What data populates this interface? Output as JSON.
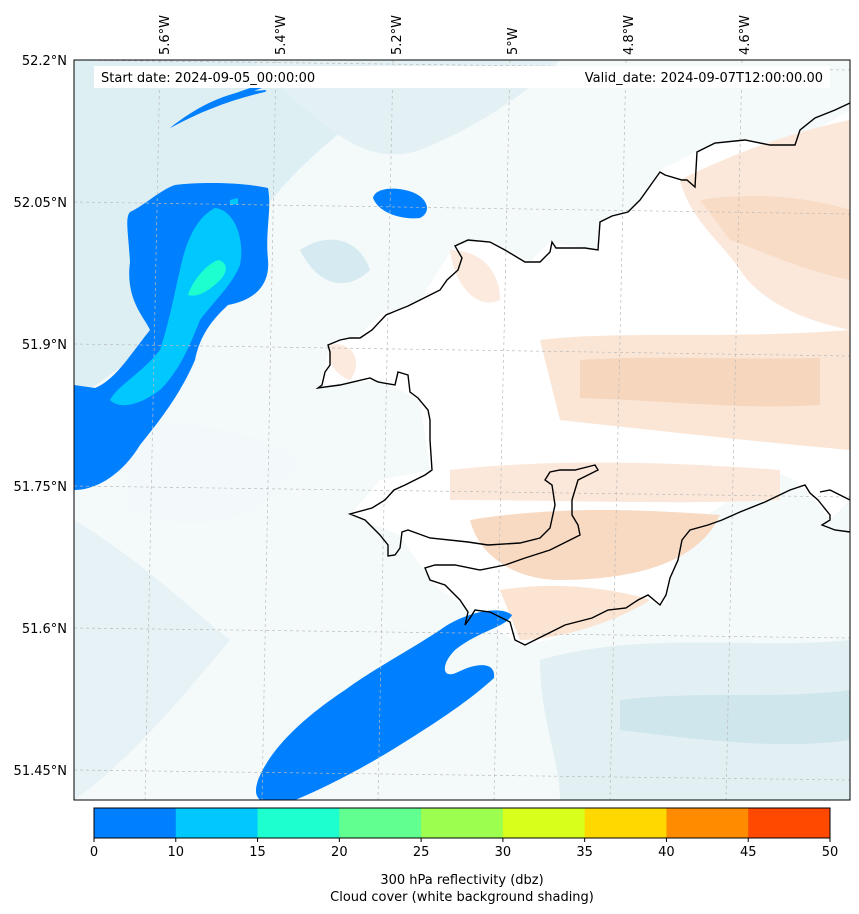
{
  "header": {
    "start_date": "Start date: 2024-09-05_00:00:00",
    "valid_date": "Valid_date: 2024-09-07T12:00:00.00"
  },
  "axes": {
    "lon_labels": [
      "5.6°W",
      "5.4°W",
      "5.2°W",
      "5°W",
      "4.8°W",
      "4.6°W"
    ],
    "lat_labels": [
      "52.2°N",
      "52.05°N",
      "51.9°N",
      "51.75°N",
      "51.6°N",
      "51.45°N"
    ]
  },
  "colorbar": {
    "ticks": [
      "0",
      "10",
      "15",
      "20",
      "25",
      "30",
      "35",
      "40",
      "45",
      "50"
    ],
    "colors": [
      "#0080ff",
      "#00c8ff",
      "#1effd0",
      "#60ff90",
      "#9cff50",
      "#d8ff1c",
      "#ffd800",
      "#ff8c00",
      "#ff4800"
    ],
    "label_line1": "300 hPa reflectivity (dbz)",
    "label_line2": "Cloud cover (white background shading)"
  },
  "palette": {
    "cloud_light": "#e8f3f6",
    "cloud_mid": "#d4eaf0",
    "warm_light": "#fbe8da",
    "warm_mid": "#f6d3b8",
    "coast": "#000000",
    "grid": "#bbbbbb"
  }
}
